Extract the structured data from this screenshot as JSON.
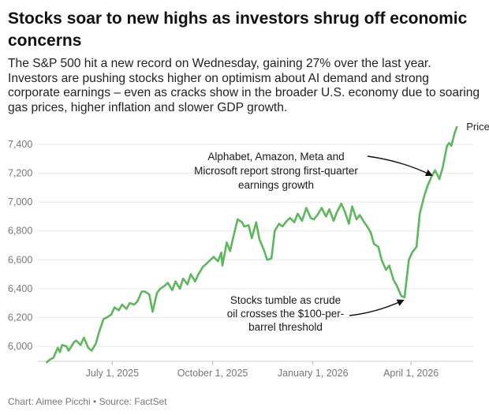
{
  "title": "Stocks soar to new highs as investors shrug off economic concerns",
  "subtitle": "The S&P 500 hit a new record on Wednesday, gaining 27% over the last year. Investors are pushing stocks higher on optimism about AI demand and strong corporate earnings – even as cracks show in the broader U.S. economy due to soaring gas prices, higher inflation and slower GDP growth.",
  "source": "Chart: Aimee Picchi • Source: FactSet",
  "chart_data": {
    "type": "line",
    "title": "",
    "xlabel": "",
    "ylabel": "",
    "ylim": [
      5900,
      7550
    ],
    "xlim": [
      "2025-05-01",
      "2026-05-15"
    ],
    "grid": true,
    "line_color": "#5cb85c",
    "y_ticks": [
      "6,000",
      "6,200",
      "6,400",
      "6,600",
      "6,800",
      "7,000",
      "7,200",
      "7,400"
    ],
    "y_tick_values": [
      6000,
      6200,
      6400,
      6600,
      6800,
      7000,
      7200,
      7400
    ],
    "x_tick_labels": [
      "July 1, 2025",
      "October 1, 2025",
      "January 1, 2026",
      "April 1, 2026"
    ],
    "x_tick_dates": [
      "2025-07-01",
      "2025-10-01",
      "2026-01-01",
      "2026-04-01"
    ],
    "series": [
      {
        "name": "Price",
        "points": [
          [
            "2025-05-02",
            5890
          ],
          [
            "2025-05-05",
            5910
          ],
          [
            "2025-05-08",
            5920
          ],
          [
            "2025-05-12",
            5990
          ],
          [
            "2025-05-14",
            5960
          ],
          [
            "2025-05-16",
            6010
          ],
          [
            "2025-05-20",
            6000
          ],
          [
            "2025-05-22",
            5970
          ],
          [
            "2025-05-27",
            6030
          ],
          [
            "2025-05-29",
            6040
          ],
          [
            "2025-06-02",
            6010
          ],
          [
            "2025-06-05",
            6060
          ],
          [
            "2025-06-09",
            5990
          ],
          [
            "2025-06-12",
            5970
          ],
          [
            "2025-06-16",
            6020
          ],
          [
            "2025-06-19",
            6100
          ],
          [
            "2025-06-23",
            6190
          ],
          [
            "2025-06-26",
            6200
          ],
          [
            "2025-06-30",
            6220
          ],
          [
            "2025-07-03",
            6270
          ],
          [
            "2025-07-07",
            6250
          ],
          [
            "2025-07-10",
            6290
          ],
          [
            "2025-07-14",
            6260
          ],
          [
            "2025-07-17",
            6300
          ],
          [
            "2025-07-21",
            6290
          ],
          [
            "2025-07-24",
            6310
          ],
          [
            "2025-07-28",
            6380
          ],
          [
            "2025-07-31",
            6380
          ],
          [
            "2025-08-04",
            6360
          ],
          [
            "2025-08-07",
            6240
          ],
          [
            "2025-08-11",
            6370
          ],
          [
            "2025-08-14",
            6400
          ],
          [
            "2025-08-18",
            6420
          ],
          [
            "2025-08-21",
            6440
          ],
          [
            "2025-08-25",
            6390
          ],
          [
            "2025-08-28",
            6450
          ],
          [
            "2025-09-01",
            6400
          ],
          [
            "2025-09-04",
            6470
          ],
          [
            "2025-09-08",
            6430
          ],
          [
            "2025-09-11",
            6500
          ],
          [
            "2025-09-15",
            6450
          ],
          [
            "2025-09-18",
            6500
          ],
          [
            "2025-09-22",
            6550
          ],
          [
            "2025-09-25",
            6570
          ],
          [
            "2025-09-29",
            6600
          ],
          [
            "2025-10-02",
            6620
          ],
          [
            "2025-10-06",
            6590
          ],
          [
            "2025-10-09",
            6650
          ],
          [
            "2025-10-10",
            6560
          ],
          [
            "2025-10-14",
            6720
          ],
          [
            "2025-10-17",
            6660
          ],
          [
            "2025-10-21",
            6790
          ],
          [
            "2025-10-24",
            6880
          ],
          [
            "2025-10-28",
            6860
          ],
          [
            "2025-10-30",
            6830
          ],
          [
            "2025-11-03",
            6840
          ],
          [
            "2025-11-06",
            6750
          ],
          [
            "2025-11-10",
            6860
          ],
          [
            "2025-11-13",
            6740
          ],
          [
            "2025-11-17",
            6670
          ],
          [
            "2025-11-20",
            6600
          ],
          [
            "2025-11-24",
            6610
          ],
          [
            "2025-11-27",
            6800
          ],
          [
            "2025-12-01",
            6850
          ],
          [
            "2025-12-04",
            6830
          ],
          [
            "2025-12-08",
            6870
          ],
          [
            "2025-12-11",
            6890
          ],
          [
            "2025-12-15",
            6860
          ],
          [
            "2025-12-18",
            6920
          ],
          [
            "2025-12-22",
            6870
          ],
          [
            "2025-12-26",
            6960
          ],
          [
            "2025-12-30",
            6890
          ],
          [
            "2026-01-02",
            6880
          ],
          [
            "2026-01-06",
            6920
          ],
          [
            "2026-01-09",
            6960
          ],
          [
            "2026-01-13",
            6900
          ],
          [
            "2026-01-16",
            6950
          ],
          [
            "2026-01-20",
            6870
          ],
          [
            "2026-01-23",
            6930
          ],
          [
            "2026-01-27",
            6990
          ],
          [
            "2026-01-30",
            6940
          ],
          [
            "2026-02-03",
            6850
          ],
          [
            "2026-02-06",
            6970
          ],
          [
            "2026-02-10",
            6880
          ],
          [
            "2026-02-13",
            6910
          ],
          [
            "2026-02-17",
            6860
          ],
          [
            "2026-02-19",
            6840
          ],
          [
            "2026-02-23",
            6790
          ],
          [
            "2026-02-26",
            6710
          ],
          [
            "2026-03-02",
            6690
          ],
          [
            "2026-03-05",
            6600
          ],
          [
            "2026-03-09",
            6530
          ],
          [
            "2026-03-12",
            6560
          ],
          [
            "2026-03-16",
            6460
          ],
          [
            "2026-03-19",
            6420
          ],
          [
            "2026-03-23",
            6350
          ],
          [
            "2026-03-26",
            6340
          ],
          [
            "2026-03-30",
            6600
          ],
          [
            "2026-04-02",
            6650
          ],
          [
            "2026-04-06",
            6690
          ],
          [
            "2026-04-09",
            6920
          ],
          [
            "2026-04-13",
            7040
          ],
          [
            "2026-04-16",
            7110
          ],
          [
            "2026-04-20",
            7180
          ],
          [
            "2026-04-23",
            7220
          ],
          [
            "2026-04-27",
            7160
          ],
          [
            "2026-04-30",
            7240
          ],
          [
            "2026-05-04",
            7390
          ],
          [
            "2026-05-06",
            7410
          ],
          [
            "2026-05-08",
            7390
          ],
          [
            "2026-05-11",
            7480
          ],
          [
            "2026-05-13",
            7520
          ]
        ]
      }
    ],
    "annotations": [
      {
        "lines": [
          "Alphabet, Amazon, Meta and",
          "Microsoft report strong first-quarter",
          "earnings growth"
        ],
        "date": "2026-04-22",
        "value": 7175
      },
      {
        "lines": [
          "Stocks tumble as crude",
          "oil crosses the $100-per-",
          "barrel threshold"
        ],
        "date": "2026-03-24",
        "value": 6335
      }
    ]
  }
}
